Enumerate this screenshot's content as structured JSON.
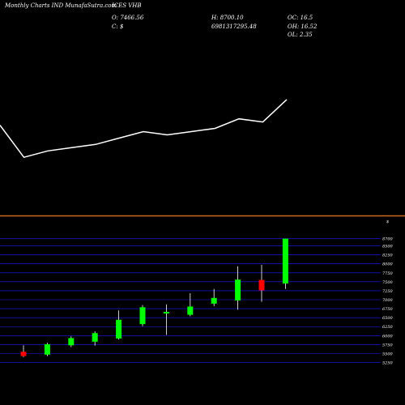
{
  "header": {
    "title": "Monthly Charts IND MunafaSutra.com",
    "symbol": "ICES VHB",
    "open": "O: 7466.56",
    "close": "C: $",
    "high": "H: 8700.10",
    "low": "6981317295.48",
    "oc": "OC: 16.5",
    "oh": "OH: 16.52",
    "ol": "OL: 2.35"
  },
  "colors": {
    "background": "#000000",
    "up": "#00ff00",
    "down": "#ff0000",
    "wick": "#ffffff",
    "divider": "#d2691e",
    "grid": "#1a1aff",
    "line": "#ffffff"
  },
  "chart_data": [
    {
      "type": "line",
      "values": [
        8.2,
        7.7,
        7.8,
        7.85,
        7.9,
        8.0,
        8.1,
        8.05,
        8.1,
        8.15,
        8.3,
        8.25,
        8.6
      ]
    },
    {
      "type": "candlestick",
      "currency_label": "$",
      "y_ticks": [
        8700,
        8500,
        8250,
        8000,
        7750,
        7500,
        7250,
        7000,
        6750,
        6500,
        6250,
        6000,
        5750,
        5500,
        5250
      ],
      "ylim": [
        5150,
        8760
      ],
      "candles": [
        {
          "open": 5550,
          "high": 5730,
          "low": 5400,
          "close": 5430
        },
        {
          "open": 5470,
          "high": 5800,
          "low": 5430,
          "close": 5760
        },
        {
          "open": 5730,
          "high": 5980,
          "low": 5680,
          "close": 5930
        },
        {
          "open": 5830,
          "high": 6120,
          "low": 5720,
          "close": 6070
        },
        {
          "open": 5920,
          "high": 6700,
          "low": 5890,
          "close": 6440
        },
        {
          "open": 6320,
          "high": 6850,
          "low": 6260,
          "close": 6790
        },
        {
          "open": 6630,
          "high": 6870,
          "low": 6020,
          "close": 6660
        },
        {
          "open": 6580,
          "high": 7180,
          "low": 6540,
          "close": 6810
        },
        {
          "open": 6890,
          "high": 7300,
          "low": 6820,
          "close": 7050
        },
        {
          "open": 6980,
          "high": 7930,
          "low": 6720,
          "close": 7560
        },
        {
          "open": 7550,
          "high": 7970,
          "low": 6940,
          "close": 7260
        },
        {
          "open": 7450,
          "high": 8700,
          "low": 7300,
          "close": 8700
        }
      ]
    }
  ]
}
